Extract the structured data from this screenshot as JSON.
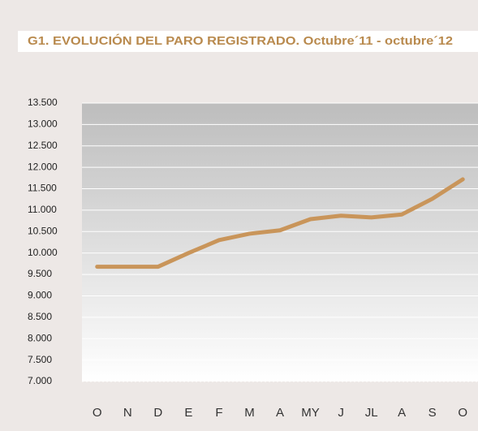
{
  "chart_data": {
    "type": "line",
    "title": "G1. EVOLUCIÓN DEL PARO REGISTRADO. Octubre´11 - octubre´12",
    "categories": [
      "O",
      "N",
      "D",
      "E",
      "F",
      "M",
      "A",
      "MY",
      "J",
      "JL",
      "A",
      "S",
      "O"
    ],
    "series": [
      {
        "name": "Paro registrado",
        "color": "#c9955a",
        "values": [
          9680,
          9680,
          9680,
          10000,
          10300,
          10450,
          10530,
          10790,
          10870,
          10830,
          10900,
          11265,
          11720
        ]
      }
    ],
    "ylim": [
      7000,
      13500
    ],
    "yticks": [
      {
        "value": 7000,
        "label": "7.000"
      },
      {
        "value": 7500,
        "label": "7.500"
      },
      {
        "value": 8000,
        "label": "8.000"
      },
      {
        "value": 8500,
        "label": "8.500"
      },
      {
        "value": 9000,
        "label": "9.000"
      },
      {
        "value": 9500,
        "label": "9.500"
      },
      {
        "value": 10000,
        "label": "10.000"
      },
      {
        "value": 10500,
        "label": "10.500"
      },
      {
        "value": 11000,
        "label": "11.000"
      },
      {
        "value": 11500,
        "label": "11.500"
      },
      {
        "value": 12000,
        "label": "12.000"
      },
      {
        "value": 12500,
        "label": "12.500"
      },
      {
        "value": 13000,
        "label": "13.000"
      },
      {
        "value": 13500,
        "label": "13.500"
      }
    ],
    "grid": true
  }
}
